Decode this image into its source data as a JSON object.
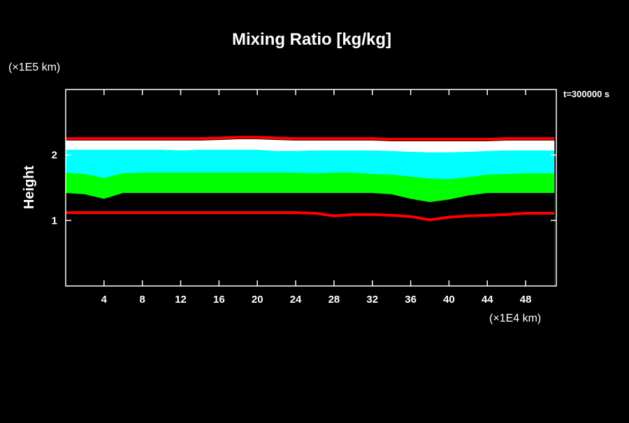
{
  "chart_data": {
    "type": "line",
    "title": "Mixing Ratio [kg/kg]",
    "y_unit": "(×1E5 km)",
    "x_unit": "(×1E4 km)",
    "ylabel": "Height",
    "annotation": "t=300000 s",
    "x": [
      0,
      2,
      4,
      6,
      8,
      10,
      12,
      14,
      16,
      18,
      20,
      22,
      24,
      26,
      28,
      30,
      32,
      34,
      36,
      38,
      40,
      42,
      44,
      46,
      48,
      50,
      51
    ],
    "series": [
      {
        "color": "#ff0000",
        "fill": false,
        "values": [
          2.25,
          2.25,
          2.25,
          2.25,
          2.25,
          2.25,
          2.25,
          2.25,
          2.26,
          2.27,
          2.27,
          2.26,
          2.25,
          2.25,
          2.25,
          2.25,
          2.25,
          2.24,
          2.24,
          2.24,
          2.24,
          2.24,
          2.24,
          2.25,
          2.25,
          2.25,
          2.25
        ]
      },
      {
        "color": "#ffffff",
        "fill": true,
        "values": [
          2.22,
          2.22,
          2.22,
          2.22,
          2.22,
          2.22,
          2.22,
          2.22,
          2.23,
          2.24,
          2.24,
          2.23,
          2.22,
          2.22,
          2.22,
          2.22,
          2.22,
          2.21,
          2.21,
          2.21,
          2.21,
          2.21,
          2.21,
          2.22,
          2.22,
          2.22,
          2.22
        ]
      },
      {
        "color": "#00ffff",
        "fill": true,
        "values": [
          2.08,
          2.08,
          2.08,
          2.08,
          2.08,
          2.08,
          2.07,
          2.08,
          2.08,
          2.08,
          2.08,
          2.06,
          2.06,
          2.07,
          2.07,
          2.07,
          2.07,
          2.06,
          2.05,
          2.04,
          2.04,
          2.05,
          2.06,
          2.07,
          2.07,
          2.07,
          2.07
        ]
      },
      {
        "color": "#00ff00",
        "fill": true,
        "values": [
          1.73,
          1.71,
          1.65,
          1.72,
          1.73,
          1.73,
          1.73,
          1.73,
          1.73,
          1.73,
          1.73,
          1.73,
          1.73,
          1.72,
          1.73,
          1.73,
          1.71,
          1.7,
          1.67,
          1.64,
          1.63,
          1.66,
          1.7,
          1.71,
          1.72,
          1.72,
          1.72
        ]
      },
      {
        "color": "#000000",
        "fill": true,
        "values": [
          1.42,
          1.4,
          1.33,
          1.42,
          1.42,
          1.42,
          1.42,
          1.42,
          1.42,
          1.42,
          1.42,
          1.42,
          1.42,
          1.42,
          1.42,
          1.42,
          1.42,
          1.4,
          1.33,
          1.28,
          1.32,
          1.38,
          1.42,
          1.42,
          1.42,
          1.42,
          1.42
        ]
      },
      {
        "color": "#ff0000",
        "fill": false,
        "values": [
          1.12,
          1.12,
          1.12,
          1.12,
          1.12,
          1.12,
          1.12,
          1.12,
          1.12,
          1.12,
          1.12,
          1.12,
          1.12,
          1.11,
          1.07,
          1.09,
          1.09,
          1.08,
          1.06,
          1.01,
          1.05,
          1.07,
          1.08,
          1.09,
          1.11,
          1.11,
          1.11
        ]
      }
    ],
    "xlim": [
      0,
      51.2
    ],
    "ylim": [
      0,
      3
    ],
    "xticks": [
      4,
      8,
      12,
      16,
      20,
      24,
      28,
      32,
      36,
      40,
      44,
      48
    ],
    "yticks": [
      1,
      2
    ]
  }
}
